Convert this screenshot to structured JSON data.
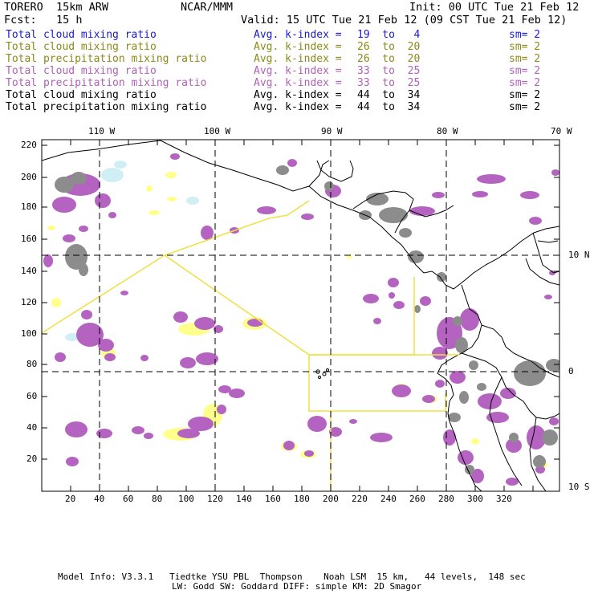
{
  "header": {
    "model_name": "TORERO  15km ARW",
    "org": "NCAR/MMM",
    "init": "Init: 00 UTC Tue 21 Feb 12",
    "fcst": "Fcst:   15 h",
    "valid": "Valid: 15 UTC Tue 21 Feb 12 (09 CST Tue 21 Feb 12)"
  },
  "legend": [
    {
      "field": "Total cloud mixing ratio",
      "index_label": "Avg. k-index =",
      "range": "19  to   4",
      "sm": "sm= 2",
      "color": "#1a1ad6"
    },
    {
      "field": "Total cloud mixing ratio",
      "index_label": "Avg. k-index =",
      "range": "26  to  20",
      "sm": "sm= 2",
      "color": "#8c8a18"
    },
    {
      "field": "Total precipitation mixing ratio",
      "index_label": "Avg. k-index =",
      "range": "26  to  20",
      "sm": "sm= 2",
      "color": "#8c8a18"
    },
    {
      "field": "Total cloud mixing ratio",
      "index_label": "Avg. k-index =",
      "range": "33  to  25",
      "sm": "sm= 2",
      "color": "#b061b8"
    },
    {
      "field": "Total precipitation mixing ratio",
      "index_label": "Avg. k-index =",
      "range": "33  to  25",
      "sm": "sm= 2",
      "color": "#b061b8"
    },
    {
      "field": "Total cloud mixing ratio",
      "index_label": "Avg. k-index =",
      "range": "44  to  34",
      "sm": "sm= 2",
      "color": "#000000"
    },
    {
      "field": "Total precipitation mixing ratio",
      "index_label": "Avg. k-index =",
      "range": "44  to  34",
      "sm": "sm= 2",
      "color": "#000000"
    }
  ],
  "map": {
    "lon_labels": [
      "110 W",
      "100 W",
      "90 W",
      "80 W",
      "70 W"
    ],
    "lat_labels": [
      "10 N",
      "0",
      "10 S"
    ],
    "x_ticks": [
      "20",
      "40",
      "60",
      "80",
      "100",
      "120",
      "140",
      "160",
      "180",
      "200",
      "220",
      "240",
      "260",
      "280",
      "300",
      "320"
    ],
    "y_ticks": [
      "220",
      "200",
      "180",
      "160",
      "140",
      "120",
      "100",
      "80",
      "60",
      "40",
      "20"
    ],
    "colors": {
      "light_cloud": "#cfeff5",
      "precip_low": "#ffff8c",
      "precip_mid": "#b464c0",
      "precip_high": "#8c8c8c",
      "flight_track": "#f0e040",
      "coastline": "#000000"
    }
  },
  "footer": {
    "line1": "Model Info: V3.3.1   Tiedtke YSU PBL  Thompson    Noah LSM  15 km,   44 levels,  148 sec",
    "line2": "LW: Godd SW: Goddard DIFF: simple KM: 2D Smagor"
  }
}
